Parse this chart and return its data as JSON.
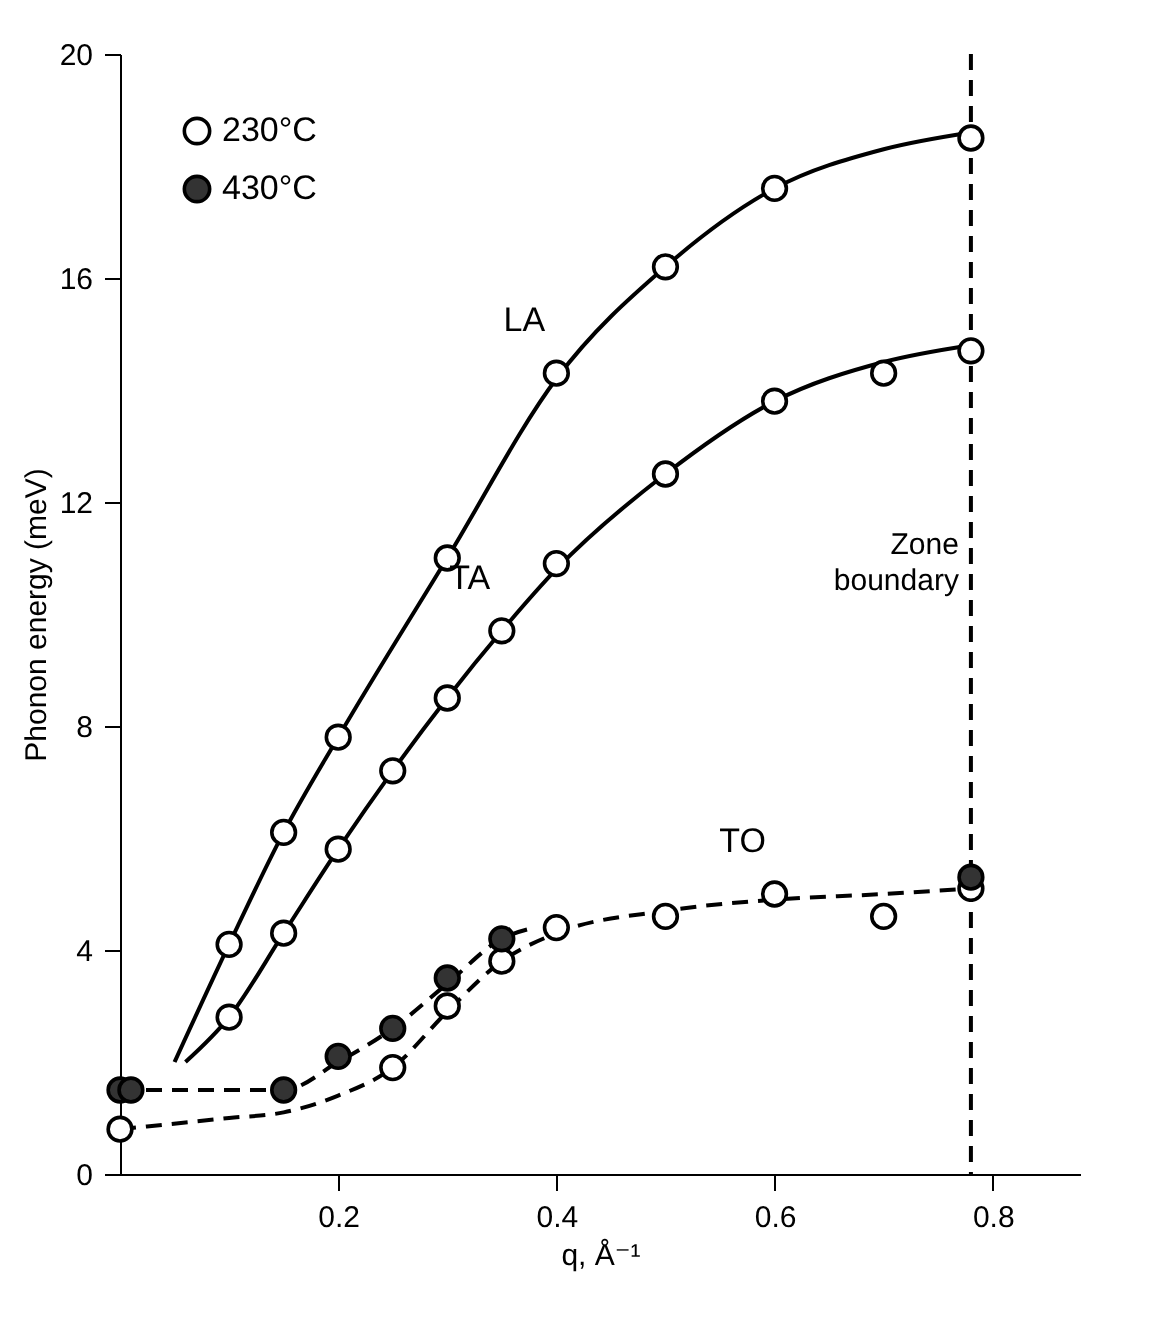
{
  "chart_data": {
    "type": "scatter",
    "xlabel": "q, Å⁻¹",
    "ylabel": "Phonon energy (meV)",
    "xlim": [
      0,
      0.88
    ],
    "ylim": [
      0,
      20
    ],
    "xticks": [
      0.2,
      0.4,
      0.6,
      0.8
    ],
    "yticks": [
      0,
      4,
      8,
      12,
      16,
      20
    ],
    "grid": false,
    "legend": "top left",
    "marker": "circle",
    "series": [
      {
        "name": "230°C",
        "color": "#ffffff",
        "x": [
          0.1,
          0.15,
          0.2,
          0.3,
          0.4,
          0.5,
          0.6,
          0.78,
          0.1,
          0.15,
          0.2,
          0.25,
          0.3,
          0.35,
          0.4,
          0.5,
          0.6,
          0.7,
          0.78,
          0,
          0.25,
          0.3,
          0.35,
          0.4,
          0.5,
          0.6,
          0.7,
          0.78
        ],
        "values": [
          4.1,
          6.1,
          7.8,
          11.0,
          14.3,
          16.2,
          17.6,
          18.5,
          2.8,
          4.3,
          5.8,
          7.2,
          8.5,
          9.7,
          10.9,
          12.5,
          13.8,
          14.3,
          14.7,
          0.8,
          1.9,
          3.0,
          3.8,
          4.4,
          4.6,
          5.0,
          4.6,
          5.1
        ]
      },
      {
        "name": "430°C",
        "color": "#333333",
        "x": [
          0,
          0.01,
          0.15,
          0.2,
          0.25,
          0.3,
          0.35,
          0.78
        ],
        "values": [
          1.5,
          1.5,
          1.5,
          2.1,
          2.6,
          3.5,
          4.2,
          5.3
        ]
      },
      {
        "type": "line",
        "marker": "none",
        "line_style": "solid",
        "color": "#000000",
        "x": [
          0.05,
          0.1,
          0.15,
          0.2,
          0.3,
          0.4,
          0.5,
          0.6,
          0.7,
          0.78
        ],
        "values": [
          2.0,
          4.1,
          6.1,
          7.8,
          11.0,
          14.2,
          16.2,
          17.6,
          18.3,
          18.6
        ]
      },
      {
        "type": "line",
        "marker": "none",
        "line_style": "solid",
        "color": "#000000",
        "x": [
          0.06,
          0.1,
          0.15,
          0.2,
          0.25,
          0.3,
          0.35,
          0.4,
          0.5,
          0.6,
          0.7,
          0.78
        ],
        "values": [
          2.0,
          2.8,
          4.3,
          5.8,
          7.2,
          8.5,
          9.7,
          10.8,
          12.5,
          13.8,
          14.5,
          14.8
        ]
      },
      {
        "type": "line",
        "marker": "none",
        "line_style": "dashed",
        "color": "#000000",
        "x": [
          0,
          0.1,
          0.15,
          0.2,
          0.25,
          0.3,
          0.35,
          0.4,
          0.5,
          0.6,
          0.7,
          0.78
        ],
        "values": [
          0.8,
          1.0,
          1.1,
          1.4,
          1.9,
          2.9,
          3.8,
          4.3,
          4.7,
          4.9,
          5.0,
          5.1
        ]
      },
      {
        "type": "line",
        "marker": "none",
        "line_style": "dashed",
        "color": "#000000",
        "x": [
          0,
          0.15,
          0.2,
          0.25,
          0.3,
          0.35,
          0.38
        ],
        "values": [
          1.5,
          1.5,
          2.0,
          2.6,
          3.4,
          4.2,
          4.4
        ]
      }
    ],
    "ref_lines": [
      {
        "axis": "x",
        "value": 0.78,
        "label": "Zone boundary",
        "line_style": "dashed",
        "color": "#000000"
      }
    ],
    "annotations": [
      {
        "text": "LA",
        "x": 0.4,
        "y": 14.3
      },
      {
        "text": "TA",
        "x": 0.35,
        "y": 9.7
      },
      {
        "text": "TO",
        "x": 0.6,
        "y": 5.0
      }
    ]
  }
}
